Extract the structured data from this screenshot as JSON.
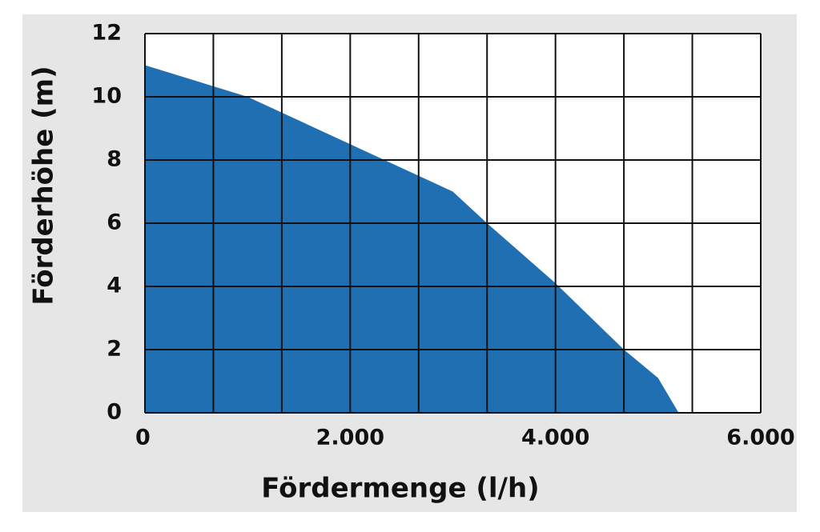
{
  "chart_data": {
    "type": "area",
    "x_label": "Fördermenge (l/h)",
    "y_label": "Förderhöhe (m)",
    "x": [
      0,
      1000,
      2000,
      3000,
      3333,
      4000,
      4667,
      5000,
      5200
    ],
    "y": [
      11,
      10,
      8.5,
      7.0,
      6.0,
      4.1,
      2.0,
      1.1,
      0
    ],
    "color": "#1f6fb2",
    "xlim": [
      0,
      6000
    ],
    "ylim": [
      0,
      12
    ],
    "xticks": [
      0,
      {
        "value": 2000,
        "label": "2.000"
      },
      {
        "value": 4000,
        "label": "4.000"
      },
      {
        "value": 6000,
        "label": "6.000"
      }
    ],
    "xgrid": [
      0,
      666.67,
      1333.33,
      2000,
      2666.67,
      3333.33,
      4000,
      4666.67,
      5333.33,
      6000
    ],
    "yticks": [
      0,
      2,
      4,
      6,
      8,
      10,
      12
    ],
    "grid": true
  }
}
